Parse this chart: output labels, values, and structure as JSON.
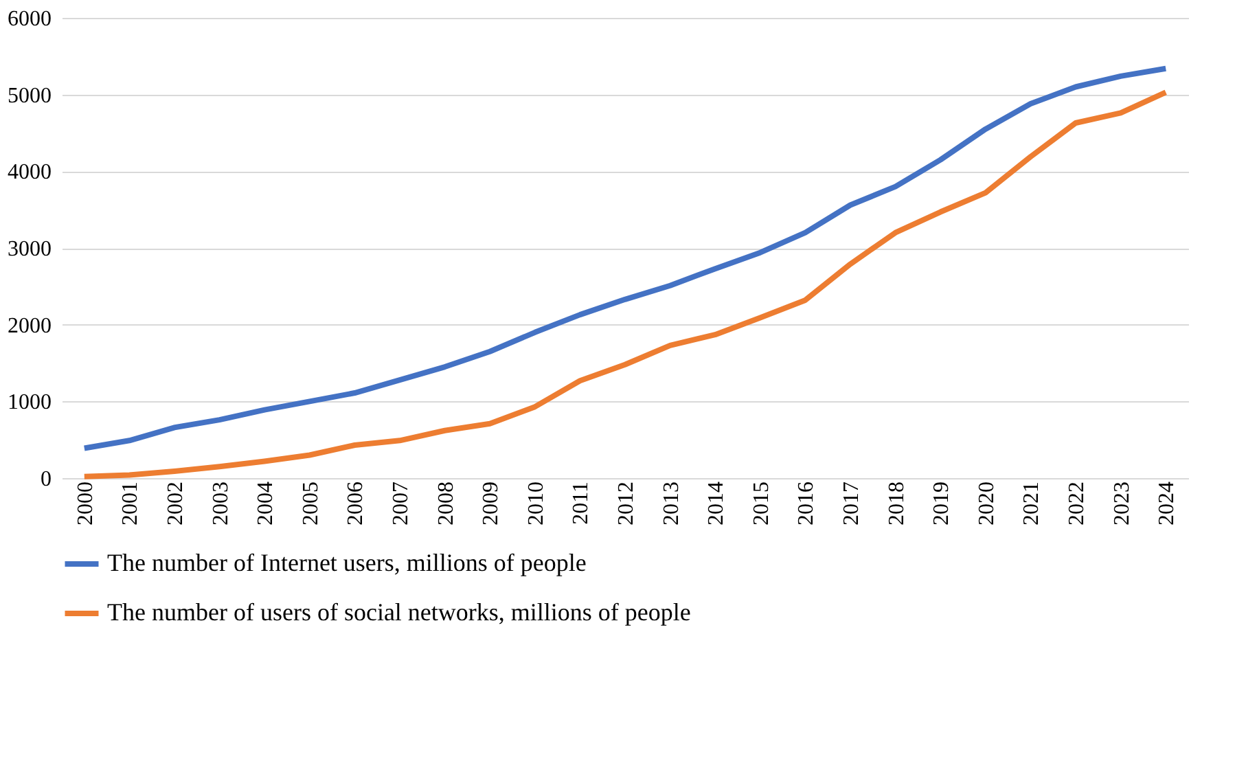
{
  "chart_data": {
    "type": "line",
    "categories": [
      "2000",
      "2001",
      "2002",
      "2003",
      "2004",
      "2005",
      "2006",
      "2007",
      "2008",
      "2009",
      "2010",
      "2011",
      "2012",
      "2013",
      "2014",
      "2015",
      "2016",
      "2017",
      "2018",
      "2019",
      "2020",
      "2021",
      "2022",
      "2023",
      "2024"
    ],
    "series": [
      {
        "name": "The number of Internet users, millions of people",
        "color": "#4472c4",
        "values": [
          390,
          490,
          660,
          760,
          890,
          1000,
          1110,
          1280,
          1450,
          1650,
          1900,
          2130,
          2330,
          2510,
          2730,
          2940,
          3200,
          3560,
          3800,
          4150,
          4550,
          4880,
          5100,
          5240,
          5340
        ]
      },
      {
        "name": "The number of users of social networks, millions of people",
        "color": "#ed7d31",
        "values": [
          20,
          40,
          90,
          150,
          220,
          300,
          430,
          490,
          620,
          710,
          930,
          1270,
          1480,
          1730,
          1870,
          2090,
          2320,
          2790,
          3200,
          3470,
          3720,
          4190,
          4630,
          4760,
          5030
        ]
      }
    ],
    "ylim": [
      0,
      6000
    ],
    "yticks": [
      0,
      1000,
      2000,
      3000,
      4000,
      5000,
      6000
    ],
    "grid": "y",
    "legend": "bottom",
    "marker": "none",
    "line_style": "solid"
  }
}
